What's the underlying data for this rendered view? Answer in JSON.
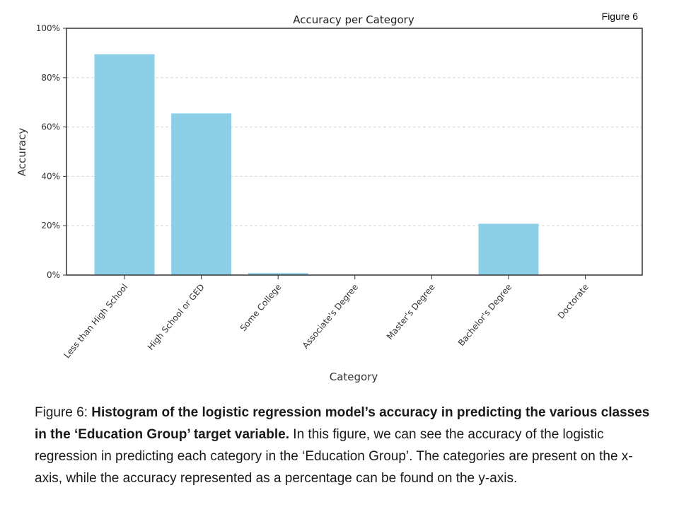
{
  "figure_tag": "Figure 6",
  "caption": {
    "prefix": "Figure 6: ",
    "bold": "Histogram of the logistic regression model’s accuracy in predicting the various classes in the ‘Education Group’ target variable.",
    "body": " In this figure, we can see the accuracy of the logistic regression in predicting each category in the ‘Education Group’. The categories are present on the x-axis, while the accuracy represented as a percentage can be found on the y-axis."
  },
  "chart_data": {
    "type": "bar",
    "title": "Accuracy per Category",
    "xlabel": "Category",
    "ylabel": "Accuracy",
    "categories": [
      "Less than High School",
      "High School or GED",
      "Some College",
      "Associate's Degree",
      "Master's Degree",
      "Bachelor's Degree",
      "Doctorate"
    ],
    "values": [
      89.5,
      65.5,
      0.8,
      0,
      0,
      20.8,
      0
    ],
    "ylim": [
      0,
      100
    ],
    "yticks": [
      0,
      20,
      40,
      60,
      80,
      100
    ],
    "ytick_labels": [
      "0%",
      "20%",
      "40%",
      "60%",
      "80%",
      "100%"
    ],
    "grid": "horizontal dashed",
    "bar_color": "#8ecfe8"
  }
}
